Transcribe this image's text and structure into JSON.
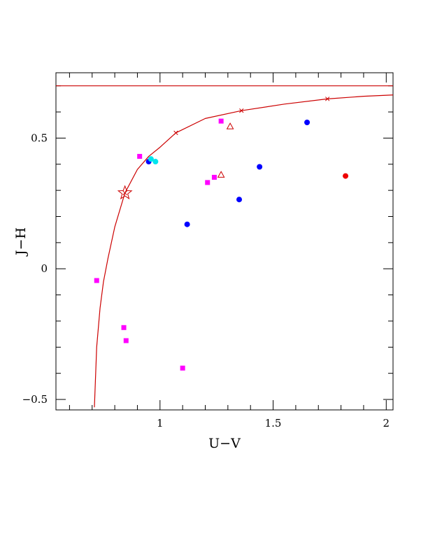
{
  "chart_data": {
    "type": "scatter",
    "xlabel": "U−V",
    "ylabel": "J−H",
    "xlim": [
      0.54,
      2.03
    ],
    "ylim": [
      -0.54,
      0.75
    ],
    "x_major_ticks": [
      1,
      1.5,
      2
    ],
    "x_tick_labels": [
      "1",
      "1.5",
      "2"
    ],
    "y_major_ticks": [
      -0.5,
      0,
      0.5
    ],
    "y_tick_labels": [
      "−0.5",
      "0",
      "0.5"
    ],
    "grid": false,
    "colors": {
      "blue": "#0000ff",
      "cyan": "#00e5ee",
      "magenta": "#ff00ff",
      "red": "#ee0000",
      "curve": "#cc0000"
    },
    "series": [
      {
        "marker": "circle",
        "color": "#0000ff",
        "points": [
          [
            0.95,
            0.41
          ],
          [
            1.12,
            0.17
          ],
          [
            1.35,
            0.265
          ],
          [
            1.44,
            0.39
          ],
          [
            1.65,
            0.56
          ]
        ]
      },
      {
        "marker": "circle",
        "color": "#00e5ee",
        "points": [
          [
            0.96,
            0.42
          ],
          [
            0.98,
            0.41
          ]
        ]
      },
      {
        "marker": "circle",
        "color": "#ee0000",
        "points": [
          [
            1.82,
            0.355
          ]
        ]
      },
      {
        "marker": "square",
        "color": "#ff00ff",
        "points": [
          [
            0.72,
            -0.045
          ],
          [
            0.84,
            -0.225
          ],
          [
            0.85,
            -0.275
          ],
          [
            0.91,
            0.43
          ],
          [
            1.1,
            -0.38
          ],
          [
            1.21,
            0.33
          ],
          [
            1.24,
            0.35
          ],
          [
            1.27,
            0.565
          ]
        ]
      },
      {
        "marker": "open-triangle",
        "color": "#cc0000",
        "points": [
          [
            1.31,
            0.545
          ],
          [
            1.27,
            0.36
          ]
        ]
      },
      {
        "marker": "open-star",
        "color": "#cc0000",
        "points": [
          [
            0.845,
            0.29
          ]
        ]
      },
      {
        "marker": "cross",
        "color": "#cc0000",
        "points": [
          [
            0.845,
            0.29
          ],
          [
            1.07,
            0.52
          ],
          [
            1.36,
            0.605
          ],
          [
            1.74,
            0.65
          ]
        ]
      }
    ],
    "curve": [
      [
        0.71,
        -0.53
      ],
      [
        0.72,
        -0.3
      ],
      [
        0.735,
        -0.15
      ],
      [
        0.75,
        -0.05
      ],
      [
        0.77,
        0.04
      ],
      [
        0.8,
        0.16
      ],
      [
        0.845,
        0.29
      ],
      [
        0.9,
        0.38
      ],
      [
        0.95,
        0.43
      ],
      [
        1.0,
        0.465
      ],
      [
        1.07,
        0.52
      ],
      [
        1.2,
        0.575
      ],
      [
        1.36,
        0.605
      ],
      [
        1.55,
        0.63
      ],
      [
        1.74,
        0.65
      ],
      [
        1.9,
        0.66
      ],
      [
        2.03,
        0.665
      ]
    ],
    "hline": 0.7
  }
}
